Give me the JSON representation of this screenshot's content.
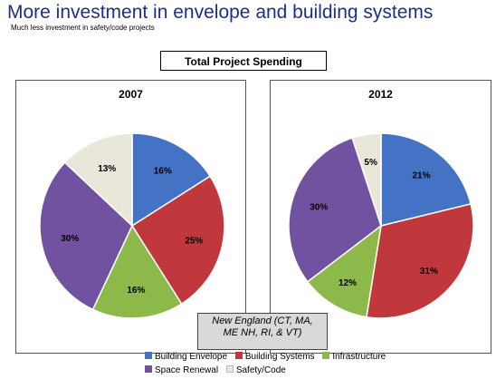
{
  "header": {
    "title": "More investment in envelope and building systems",
    "subtitle": "Much less investment in safety/code projects"
  },
  "spending_label": "Total Project Spending",
  "region_note": {
    "line1": "New England  (CT, MA,",
    "line2": "ME NH, RI, & VT)"
  },
  "legend": [
    {
      "label": "Building Envelope",
      "color": "#4472c4"
    },
    {
      "label": "Building Systems",
      "color": "#c0383c"
    },
    {
      "label": "Infrastructure",
      "color": "#8db84a"
    },
    {
      "label": "Space Renewal",
      "color": "#7052a0"
    },
    {
      "label": "Safety/Code",
      "color": "#e9e7da"
    }
  ],
  "chart_data": [
    {
      "type": "pie",
      "title": "2007",
      "categories": [
        "Building Envelope",
        "Building Systems",
        "Infrastructure",
        "Space Renewal",
        "Safety/Code"
      ],
      "values": [
        16,
        25,
        16,
        30,
        13
      ],
      "labels": [
        "16%",
        "25%",
        "16%",
        "30%",
        "13%"
      ],
      "colors": [
        "#4472c4",
        "#c0383c",
        "#8db84a",
        "#7052a0",
        "#e9e7da"
      ],
      "legend": "bottom"
    },
    {
      "type": "pie",
      "title": "2012",
      "categories": [
        "Building Envelope",
        "Building Systems",
        "Infrastructure",
        "Space Renewal",
        "Safety/Code"
      ],
      "values": [
        21,
        31,
        12,
        30,
        5
      ],
      "labels": [
        "21%",
        "31%",
        "12%",
        "30%",
        "5%"
      ],
      "colors": [
        "#4472c4",
        "#c0383c",
        "#8db84a",
        "#7052a0",
        "#e9e7da"
      ],
      "legend": "bottom"
    }
  ]
}
